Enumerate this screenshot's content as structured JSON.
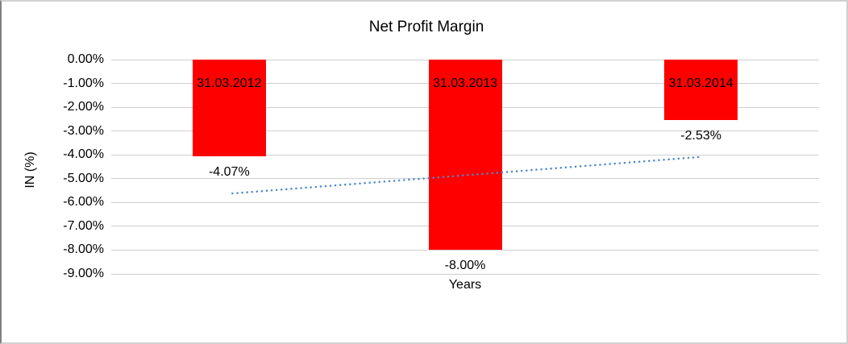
{
  "chart_data": {
    "type": "bar",
    "title": "Net Profit Margin",
    "xlabel": "Years",
    "ylabel": "IN (%)",
    "categories": [
      "31.03.2012",
      "31.03.2013",
      "31.03.2014"
    ],
    "values": [
      -4.07,
      -8.0,
      -2.53
    ],
    "value_labels": [
      "-4.07%",
      "-8.00%",
      "-2.53%"
    ],
    "ylim": [
      -9,
      0
    ],
    "ytick_labels": [
      "0.00%",
      "-1.00%",
      "-2.00%",
      "-3.00%",
      "-4.00%",
      "-5.00%",
      "-6.00%",
      "-7.00%",
      "-8.00%",
      "-9.00%"
    ],
    "grid": true,
    "legend": "none",
    "bar_color": "#FF0000",
    "gridline_color": "#CFCFCF",
    "text_color": "#000000",
    "trendline": {
      "type": "linear",
      "style": "dotted",
      "color": "#4E87C8",
      "start_value": -5.62,
      "end_value": -4.09
    }
  }
}
